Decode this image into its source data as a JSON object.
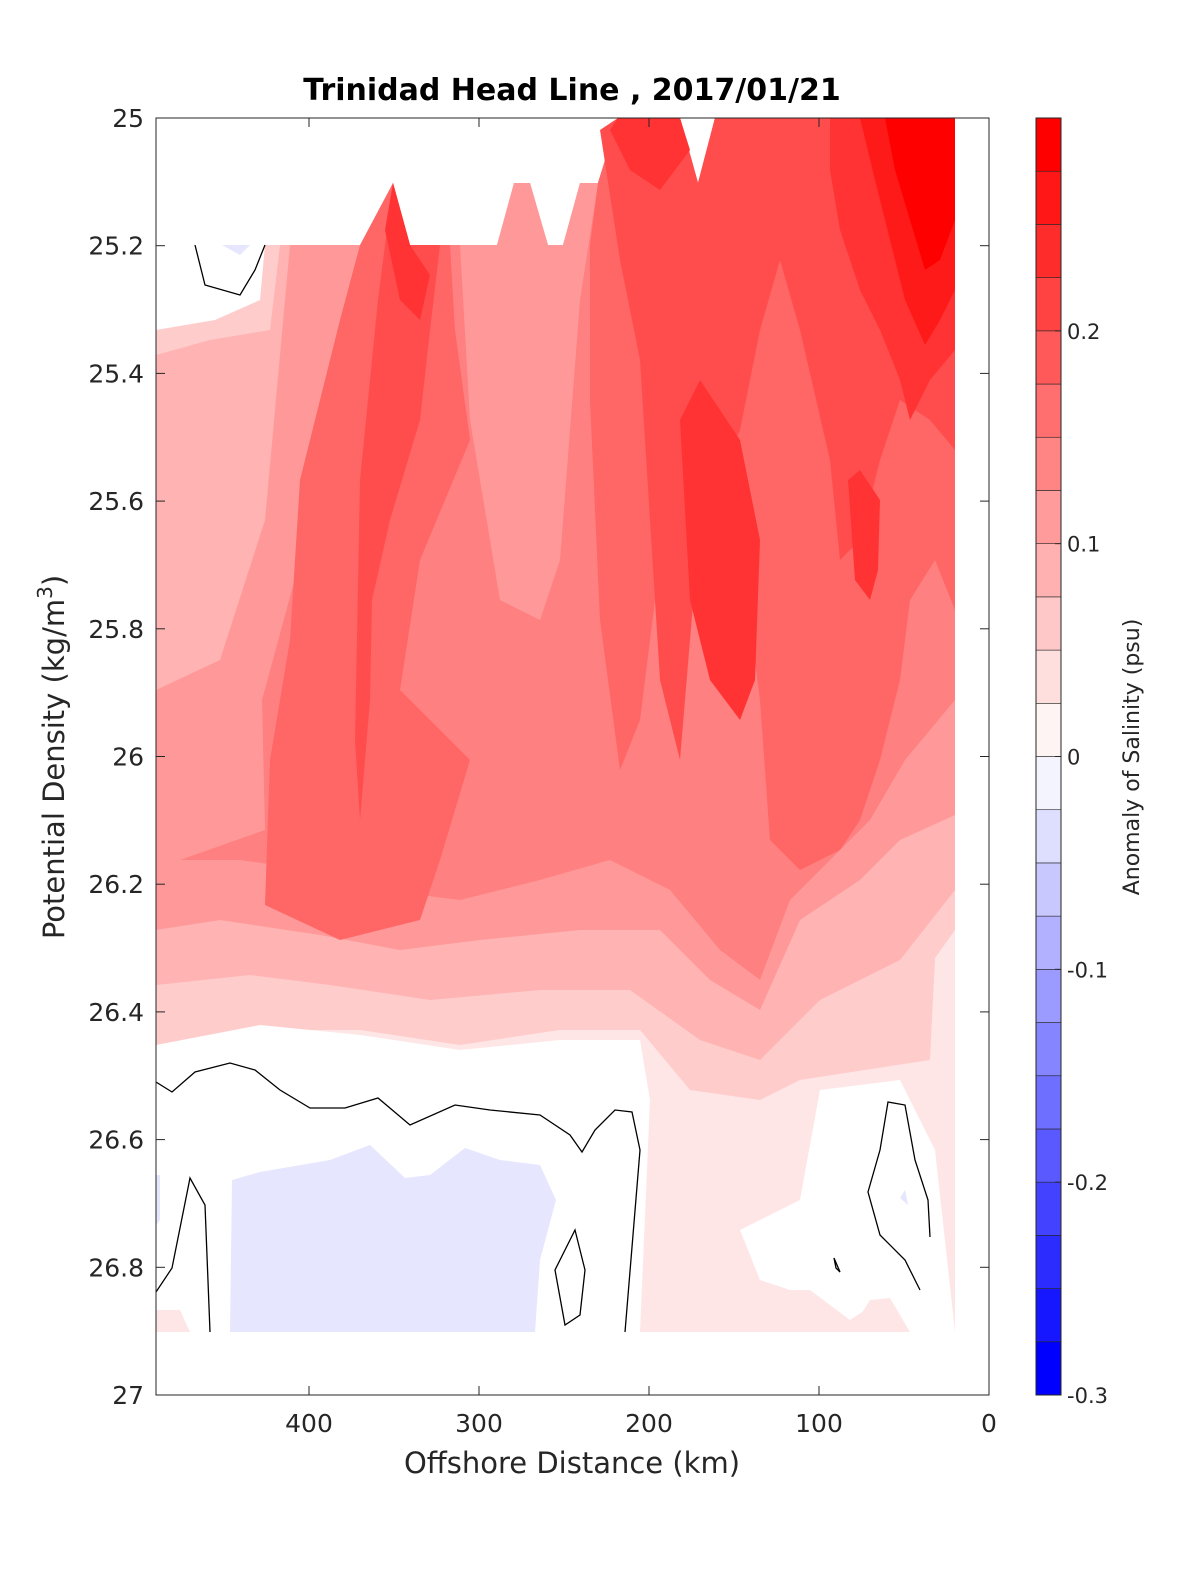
{
  "chart_data": {
    "type": "heatmap",
    "subtype": "filled-contour section",
    "title": "Trinidad Head Line , 2017/01/21",
    "xlabel": "Offshore Distance (km)",
    "ylabel_main": "Potential Density (kg/m",
    "ylabel_sup": "3",
    "ylabel_close": ")",
    "xlim": [
      490,
      0
    ],
    "x_reversed": true,
    "ylim": [
      25,
      27
    ],
    "y_reversed": true,
    "x_ticks": [
      400,
      300,
      200,
      100,
      0
    ],
    "x_tick_labels": [
      "400",
      "300",
      "200",
      "100",
      "0"
    ],
    "y_ticks": [
      25,
      25.2,
      25.4,
      25.6,
      25.8,
      26,
      26.2,
      26.4,
      26.6,
      26.8,
      27
    ],
    "y_tick_labels": [
      "25",
      "25.2",
      "25.4",
      "25.6",
      "25.8",
      "26",
      "26.2",
      "26.4",
      "26.6",
      "26.8",
      "27"
    ],
    "colorbar": {
      "label": "Anomaly of Salinity (psu)",
      "range": [
        -0.3,
        0.3
      ],
      "ticks": [
        -0.3,
        -0.2,
        -0.1,
        0,
        0.1,
        0.2
      ],
      "tick_labels": [
        "-0.3",
        "-0.2",
        "-0.1",
        "0",
        "0.1",
        "0.2"
      ],
      "level_step": 0.025
    },
    "zero_contour_color": "#000000",
    "data_coverage": {
      "x_range": [
        490,
        20
      ],
      "y_range": [
        25.0,
        26.9
      ],
      "missing_above": "irregular upper boundary near 25.0–25.2 at offshore stations"
    },
    "anomaly_features": [
      {
        "name": "nearshore salty core",
        "x": 40,
        "y": 25.1,
        "value": 0.28
      },
      {
        "name": "mid-section salty core",
        "x": 150,
        "y": 25.75,
        "value": 0.19
      },
      {
        "name": "offshore salty tongue",
        "x": 340,
        "y": 25.25,
        "value": 0.2
      },
      {
        "name": "deep fresh pocket",
        "x": 360,
        "y": 26.8,
        "value": -0.02
      },
      {
        "name": "upper fresh spot",
        "x": 440,
        "y": 25.2,
        "value": -0.02
      }
    ]
  }
}
